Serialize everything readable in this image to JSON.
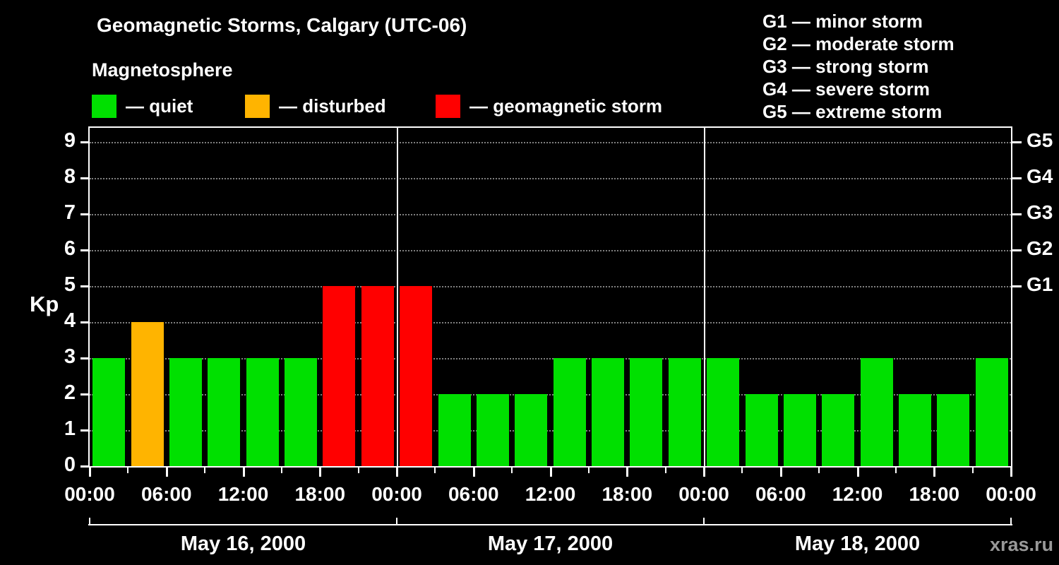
{
  "title": "Geomagnetic Storms, Calgary (UTC-06)",
  "subtitle": "Magnetosphere",
  "watermark": "xras.ru",
  "legend": [
    {
      "label": "— quiet",
      "color": "#00e000"
    },
    {
      "label": "— disturbed",
      "color": "#ffb400"
    },
    {
      "label": "— geomagnetic storm",
      "color": "#ff0000"
    }
  ],
  "g_scale": [
    "G1 — minor storm",
    "G2 — moderate storm",
    "G3 — strong storm",
    "G4 — severe storm",
    "G5 — extreme storm"
  ],
  "chart_data": {
    "type": "bar",
    "title": "Geomagnetic Storms, Calgary (UTC-06)",
    "ylabel": "Kp",
    "ylim": [
      0,
      9.4
    ],
    "yticks": [
      0,
      1,
      2,
      3,
      4,
      5,
      6,
      7,
      8,
      9
    ],
    "right_axis": [
      {
        "kp": 5,
        "label": "G1"
      },
      {
        "kp": 6,
        "label": "G2"
      },
      {
        "kp": 7,
        "label": "G3"
      },
      {
        "kp": 8,
        "label": "G4"
      },
      {
        "kp": 9,
        "label": "G5"
      }
    ],
    "x_tick_labels": [
      "00:00",
      "06:00",
      "12:00",
      "18:00",
      "00:00",
      "06:00",
      "12:00",
      "18:00",
      "00:00",
      "06:00",
      "12:00",
      "18:00",
      "00:00"
    ],
    "interval_hours": 3,
    "days": [
      {
        "date": "May 16, 2000",
        "values": [
          3,
          4,
          3,
          3,
          3,
          3,
          5,
          5
        ]
      },
      {
        "date": "May 17, 2000",
        "values": [
          5,
          2,
          2,
          2,
          3,
          3,
          3,
          3
        ]
      },
      {
        "date": "May 18, 2000",
        "values": [
          3,
          2,
          2,
          2,
          3,
          2,
          2,
          3
        ]
      }
    ],
    "color_rules": {
      "storm_min": 5,
      "disturbed_min": 4
    },
    "colors": {
      "quiet": "#00e000",
      "disturbed": "#ffb400",
      "storm": "#ff0000"
    },
    "legend_position": "top-left",
    "grid": "horizontal-dotted"
  }
}
